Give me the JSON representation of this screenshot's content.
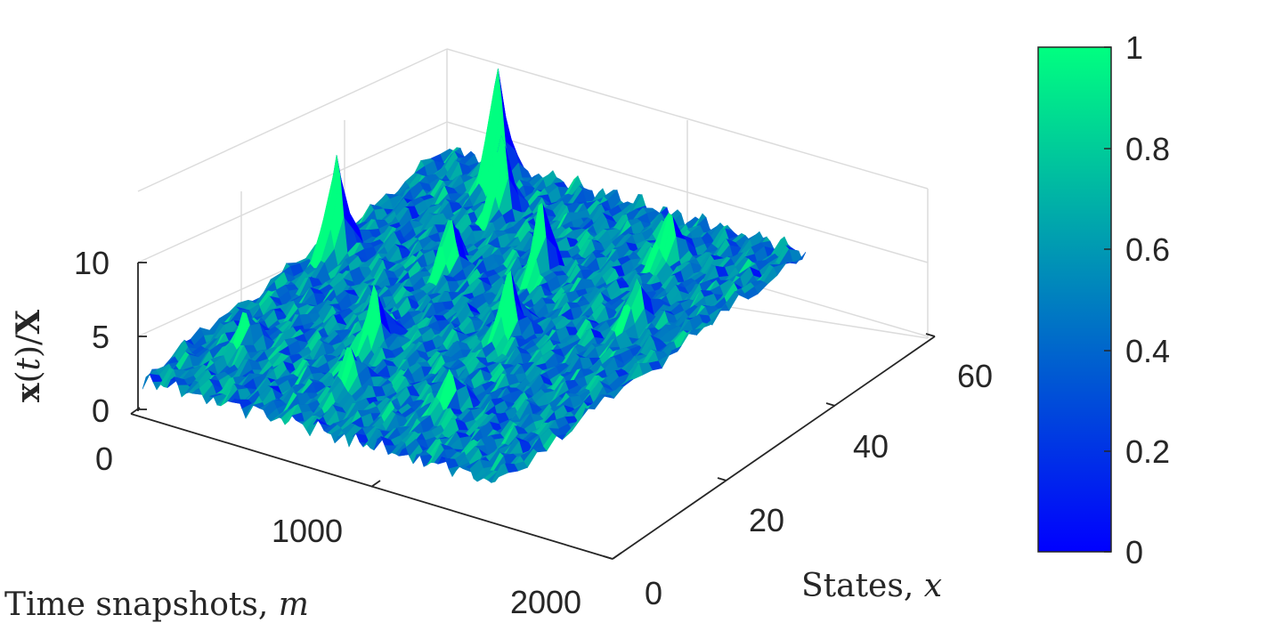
{
  "chart_data": {
    "type": "surface",
    "axes": {
      "x": {
        "label": "Time snapshots, ",
        "label_var": "m",
        "range": [
          0,
          2000
        ],
        "ticks": [
          "0",
          "1000",
          "2000"
        ]
      },
      "y": {
        "label": "States, ",
        "label_var": "x",
        "range": [
          0,
          64
        ],
        "ticks": [
          "0",
          "20",
          "40",
          "60"
        ]
      },
      "z": {
        "label_parts": [
          "x",
          "(",
          "t",
          ")/",
          "X"
        ],
        "range": [
          0,
          10
        ],
        "ticks": [
          "0",
          "5",
          "10"
        ]
      }
    },
    "grid": true,
    "colormap": "winter",
    "colorbar": {
      "range": [
        0,
        1
      ],
      "ticks": [
        "0",
        "0.2",
        "0.4",
        "0.6",
        "0.8",
        "1"
      ],
      "position": "right"
    },
    "baseline_z": 1.5,
    "peaks": [
      {
        "m": 380,
        "state": 60,
        "z": 9.5
      },
      {
        "m": 120,
        "state": 36,
        "z": 8.6
      },
      {
        "m": 560,
        "state": 54,
        "z": 6.8
      },
      {
        "m": 760,
        "state": 20,
        "z": 5.6
      },
      {
        "m": 1050,
        "state": 44,
        "z": 6.2
      },
      {
        "m": 1250,
        "state": 30,
        "z": 6.0
      },
      {
        "m": 1500,
        "state": 54,
        "z": 5.4
      },
      {
        "m": 1700,
        "state": 40,
        "z": 4.8
      },
      {
        "m": 900,
        "state": 10,
        "z": 4.6
      },
      {
        "m": 1400,
        "state": 12,
        "z": 4.2
      },
      {
        "m": 250,
        "state": 12,
        "z": 4.0
      },
      {
        "m": 650,
        "state": 40,
        "z": 5.0
      }
    ]
  }
}
